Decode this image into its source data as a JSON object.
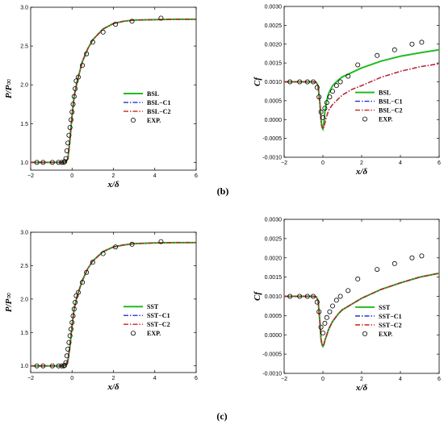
{
  "panel_labels": [
    "(b)",
    "(c)"
  ],
  "chart_data": [
    {
      "id": "tl",
      "type": "line",
      "xlabel": "x/δ",
      "ylabel": "P/P∞",
      "xlim": [
        -2,
        6
      ],
      "ylim": [
        0.9,
        3.0
      ],
      "xticks": [
        -2,
        0,
        2,
        4,
        6
      ],
      "yticks": [
        1.0,
        1.5,
        2.0,
        2.5,
        3.0
      ],
      "xticklabels": [
        "−2",
        "0",
        "2",
        "4",
        "6"
      ],
      "yticklabels": [
        "1.0",
        "1.5",
        "2.0",
        "2.5",
        "3.0"
      ],
      "legend_position": "right-center",
      "series": [
        {
          "name": "BSL",
          "color": "#22bb22",
          "style": "solid",
          "x": [
            -2,
            -0.6,
            -0.4,
            -0.3,
            -0.2,
            -0.1,
            0,
            0.1,
            0.25,
            0.5,
            0.75,
            1.0,
            1.5,
            2.0,
            2.5,
            3.0,
            4.0,
            5.0,
            6.0
          ],
          "y": [
            1.0,
            1.0,
            1.0,
            1.01,
            1.05,
            1.3,
            1.6,
            1.85,
            2.05,
            2.3,
            2.46,
            2.58,
            2.72,
            2.79,
            2.82,
            2.835,
            2.84,
            2.845,
            2.845
          ]
        },
        {
          "name": "BSL−C1",
          "color": "#2233cc",
          "style": "dashdot",
          "x": [
            -2,
            -0.6,
            -0.4,
            -0.3,
            -0.2,
            -0.1,
            0,
            0.1,
            0.25,
            0.5,
            0.75,
            1.0,
            1.5,
            2.0,
            2.5,
            3.0,
            4.0,
            5.0,
            6.0
          ],
          "y": [
            1.0,
            1.0,
            1.0,
            1.01,
            1.05,
            1.3,
            1.6,
            1.85,
            2.05,
            2.3,
            2.46,
            2.58,
            2.72,
            2.79,
            2.82,
            2.835,
            2.84,
            2.845,
            2.845
          ]
        },
        {
          "name": "BSL−C2",
          "color": "#cc2222",
          "style": "dashdot",
          "x": [
            -2,
            -0.6,
            -0.4,
            -0.3,
            -0.2,
            -0.1,
            0,
            0.1,
            0.25,
            0.5,
            0.75,
            1.0,
            1.5,
            2.0,
            2.5,
            3.0,
            4.0,
            5.0,
            6.0
          ],
          "y": [
            1.0,
            1.0,
            1.0,
            1.01,
            1.05,
            1.3,
            1.6,
            1.85,
            2.05,
            2.3,
            2.46,
            2.58,
            2.72,
            2.79,
            2.82,
            2.835,
            2.84,
            2.845,
            2.845
          ]
        },
        {
          "name": "EXP.",
          "style": "marker",
          "x": [
            -1.7,
            -1.4,
            -0.95,
            -0.65,
            -0.5,
            -0.4,
            -0.35,
            -0.3,
            -0.25,
            -0.2,
            -0.15,
            -0.1,
            -0.05,
            0.0,
            0.05,
            0.1,
            0.15,
            0.2,
            0.3,
            0.5,
            0.7,
            1.0,
            1.5,
            2.1,
            2.9,
            4.3
          ],
          "y": [
            1.0,
            1.0,
            1.0,
            1.0,
            1.0,
            1.0,
            1.01,
            1.05,
            1.15,
            1.25,
            1.35,
            1.45,
            1.55,
            1.65,
            1.75,
            1.85,
            1.95,
            2.05,
            2.1,
            2.25,
            2.4,
            2.55,
            2.68,
            2.78,
            2.82,
            2.86
          ]
        }
      ]
    },
    {
      "id": "tr",
      "type": "line",
      "xlabel": "x/δ",
      "ylabel": "Cf",
      "xlim": [
        -2,
        6
      ],
      "ylim": [
        -0.001,
        0.003
      ],
      "xticks": [
        -2,
        0,
        2,
        4,
        6
      ],
      "yticks": [
        -0.001,
        -0.0005,
        0,
        0.0005,
        0.001,
        0.0015,
        0.002,
        0.0025,
        0.003
      ],
      "xticklabels": [
        "−2",
        "0",
        "2",
        "4",
        "6"
      ],
      "yticklabels": [
        "-0.0010",
        "-0.0005",
        "0.0000",
        "0.0005",
        "0.0010",
        "0.0015",
        "0.0020",
        "0.0025",
        "0.0030"
      ],
      "legend_position": "bottom-right",
      "series": [
        {
          "name": "BSL",
          "color": "#22bb22",
          "style": "solid",
          "x": [
            -2,
            -0.5,
            -0.35,
            -0.25,
            -0.15,
            -0.1,
            -0.05,
            0,
            0.05,
            0.1,
            0.2,
            0.3,
            0.5,
            0.8,
            1.0,
            1.5,
            2,
            3,
            4,
            5,
            6
          ],
          "y": [
            0.001,
            0.001,
            0.00099,
            0.0009,
            0.0004,
            0.0,
            -0.0002,
            -0.00025,
            -0.0001,
            0.0002,
            0.0005,
            0.0007,
            0.0009,
            0.00105,
            0.00113,
            0.00125,
            0.00137,
            0.00155,
            0.00168,
            0.00177,
            0.00185
          ]
        },
        {
          "name": "BSL−C1",
          "color": "#2233cc",
          "style": "dashdot",
          "x": [
            -2,
            -0.5,
            -0.35,
            -0.25,
            -0.15,
            -0.1,
            -0.05,
            0,
            0.05,
            0.1,
            0.2,
            0.3,
            0.5,
            0.8,
            1.0,
            1.5,
            2,
            3,
            4,
            5,
            6
          ],
          "y": [
            0.001,
            0.001,
            0.00099,
            0.0009,
            0.0004,
            0.0,
            -0.0002,
            -0.00025,
            -0.0002,
            -0.0001,
            0.0001,
            0.00025,
            0.0004,
            0.00055,
            0.00065,
            0.0008,
            0.0009,
            0.00112,
            0.00128,
            0.0014,
            0.00148
          ]
        },
        {
          "name": "BSL−C2",
          "color": "#cc2222",
          "style": "dashdot",
          "x": [
            -2,
            -0.5,
            -0.35,
            -0.25,
            -0.15,
            -0.1,
            -0.05,
            0,
            0.05,
            0.1,
            0.2,
            0.3,
            0.5,
            0.8,
            1.0,
            1.5,
            2,
            3,
            4,
            5,
            6
          ],
          "y": [
            0.001,
            0.001,
            0.00099,
            0.0009,
            0.0004,
            0.0,
            -0.0002,
            -0.00025,
            -0.0002,
            -0.0001,
            0.0001,
            0.00025,
            0.0004,
            0.00055,
            0.00065,
            0.0008,
            0.0009,
            0.00112,
            0.00128,
            0.0014,
            0.00148
          ]
        },
        {
          "name": "EXP.",
          "style": "marker",
          "x": [
            -1.7,
            -1.2,
            -0.8,
            -0.5,
            -0.3,
            -0.2,
            -0.1,
            0.0,
            0.1,
            0.2,
            0.35,
            0.5,
            0.7,
            0.9,
            1.3,
            1.8,
            2.8,
            3.7,
            4.6,
            5.1
          ],
          "y": [
            0.001,
            0.001,
            0.001,
            0.001,
            0.00085,
            0.0006,
            0.0002,
            5e-05,
            0.0003,
            0.00045,
            0.0006,
            0.00075,
            0.0009,
            0.001,
            0.00115,
            0.00145,
            0.0017,
            0.00185,
            0.002,
            0.00205
          ]
        }
      ]
    },
    {
      "id": "bl",
      "type": "line",
      "xlabel": "x/δ",
      "ylabel": "P/P∞",
      "xlim": [
        -2,
        6
      ],
      "ylim": [
        0.9,
        3.0
      ],
      "xticks": [
        -2,
        0,
        2,
        4,
        6
      ],
      "yticks": [
        1.0,
        1.5,
        2.0,
        2.5,
        3.0
      ],
      "xticklabels": [
        "−2",
        "0",
        "2",
        "4",
        "6"
      ],
      "yticklabels": [
        "1.0",
        "1.5",
        "2.0",
        "2.5",
        "3.0"
      ],
      "legend_position": "right-center",
      "series": [
        {
          "name": "SST",
          "color": "#22bb22",
          "style": "solid",
          "x": [
            -2,
            -0.6,
            -0.4,
            -0.3,
            -0.2,
            -0.1,
            0,
            0.1,
            0.25,
            0.5,
            0.75,
            1.0,
            1.5,
            2.0,
            2.5,
            3.0,
            4.0,
            5.0,
            6.0
          ],
          "y": [
            1.0,
            1.0,
            1.0,
            1.02,
            1.08,
            1.3,
            1.6,
            1.85,
            2.05,
            2.28,
            2.45,
            2.57,
            2.71,
            2.78,
            2.81,
            2.83,
            2.84,
            2.845,
            2.845
          ]
        },
        {
          "name": "SST−C1",
          "color": "#2233cc",
          "style": "dashdot",
          "x": [
            -2,
            -0.6,
            -0.4,
            -0.3,
            -0.2,
            -0.1,
            0,
            0.1,
            0.25,
            0.5,
            0.75,
            1.0,
            1.5,
            2.0,
            2.5,
            3.0,
            4.0,
            5.0,
            6.0
          ],
          "y": [
            1.0,
            1.0,
            1.0,
            1.02,
            1.08,
            1.3,
            1.6,
            1.85,
            2.05,
            2.28,
            2.45,
            2.57,
            2.71,
            2.78,
            2.81,
            2.83,
            2.84,
            2.845,
            2.845
          ]
        },
        {
          "name": "SST−C2",
          "color": "#cc2222",
          "style": "dashdot",
          "x": [
            -2,
            -0.6,
            -0.4,
            -0.3,
            -0.2,
            -0.1,
            0,
            0.1,
            0.25,
            0.5,
            0.75,
            1.0,
            1.5,
            2.0,
            2.5,
            3.0,
            4.0,
            5.0,
            6.0
          ],
          "y": [
            1.0,
            1.0,
            1.0,
            1.02,
            1.08,
            1.3,
            1.6,
            1.85,
            2.05,
            2.28,
            2.45,
            2.57,
            2.71,
            2.78,
            2.81,
            2.83,
            2.84,
            2.845,
            2.845
          ]
        },
        {
          "name": "EXP.",
          "style": "marker",
          "x": [
            -1.7,
            -1.4,
            -0.95,
            -0.65,
            -0.5,
            -0.4,
            -0.35,
            -0.3,
            -0.25,
            -0.2,
            -0.15,
            -0.1,
            -0.05,
            0.0,
            0.05,
            0.1,
            0.15,
            0.2,
            0.3,
            0.5,
            0.7,
            1.0,
            1.5,
            2.1,
            2.9,
            4.3
          ],
          "y": [
            1.0,
            1.0,
            1.0,
            1.0,
            1.0,
            1.0,
            1.01,
            1.05,
            1.15,
            1.25,
            1.35,
            1.45,
            1.55,
            1.65,
            1.75,
            1.85,
            1.95,
            2.05,
            2.1,
            2.25,
            2.4,
            2.55,
            2.68,
            2.78,
            2.82,
            2.86
          ]
        }
      ]
    },
    {
      "id": "br",
      "type": "line",
      "xlabel": "x/δ",
      "ylabel": "Cf",
      "xlim": [
        -2,
        6
      ],
      "ylim": [
        -0.001,
        0.003
      ],
      "xticks": [
        -2,
        0,
        2,
        4,
        6
      ],
      "yticks": [
        -0.001,
        -0.0005,
        0,
        0.0005,
        0.001,
        0.0015,
        0.002,
        0.0025,
        0.003
      ],
      "xticklabels": [
        "−2",
        "0",
        "2",
        "4",
        "6"
      ],
      "yticklabels": [
        "-0.0010",
        "-0.0005",
        "0.0000",
        "0.0005",
        "0.0010",
        "0.0015",
        "0.0020",
        "0.0025",
        "0.0030"
      ],
      "legend_position": "bottom-right",
      "series": [
        {
          "name": "SST",
          "color": "#22bb22",
          "style": "solid",
          "x": [
            -2,
            -0.5,
            -0.35,
            -0.25,
            -0.15,
            -0.1,
            -0.05,
            0,
            0.05,
            0.1,
            0.2,
            0.3,
            0.5,
            0.8,
            1.0,
            1.5,
            2,
            3,
            4,
            5,
            6
          ],
          "y": [
            0.001,
            0.001,
            0.00099,
            0.0009,
            0.0003,
            -0.0001,
            -0.00025,
            -0.0003,
            -0.00025,
            -0.00015,
            0.0,
            0.00015,
            0.00035,
            0.00055,
            0.00065,
            0.0008,
            0.00095,
            0.00118,
            0.00135,
            0.0015,
            0.0016
          ]
        },
        {
          "name": "SST−C1",
          "color": "#2233cc",
          "style": "dashdot",
          "x": [
            -2,
            -0.5,
            -0.35,
            -0.25,
            -0.15,
            -0.1,
            -0.05,
            0,
            0.05,
            0.1,
            0.2,
            0.3,
            0.5,
            0.8,
            1.0,
            1.5,
            2,
            3,
            4,
            5,
            6
          ],
          "y": [
            0.001,
            0.001,
            0.00099,
            0.0009,
            0.0003,
            -0.0001,
            -0.00025,
            -0.0003,
            -0.00025,
            -0.00015,
            0.0,
            0.00015,
            0.00035,
            0.00055,
            0.00065,
            0.0008,
            0.00095,
            0.00118,
            0.00135,
            0.0015,
            0.0016
          ]
        },
        {
          "name": "SST−C2",
          "color": "#cc2222",
          "style": "dashdot",
          "x": [
            -2,
            -0.5,
            -0.35,
            -0.25,
            -0.15,
            -0.1,
            -0.05,
            0,
            0.05,
            0.1,
            0.2,
            0.3,
            0.5,
            0.8,
            1.0,
            1.5,
            2,
            3,
            4,
            5,
            6
          ],
          "y": [
            0.001,
            0.001,
            0.00099,
            0.0009,
            0.0003,
            -0.0001,
            -0.00025,
            -0.0003,
            -0.00025,
            -0.00015,
            0.0,
            0.00015,
            0.00035,
            0.00055,
            0.00065,
            0.0008,
            0.00095,
            0.00118,
            0.00135,
            0.0015,
            0.0016
          ]
        },
        {
          "name": "EXP.",
          "style": "marker",
          "x": [
            -1.7,
            -1.2,
            -0.8,
            -0.5,
            -0.3,
            -0.2,
            -0.1,
            0.0,
            0.1,
            0.2,
            0.35,
            0.5,
            0.7,
            0.9,
            1.3,
            1.8,
            2.8,
            3.7,
            4.6,
            5.1
          ],
          "y": [
            0.001,
            0.001,
            0.001,
            0.001,
            0.00085,
            0.0006,
            0.0002,
            5e-05,
            0.0003,
            0.00045,
            0.0006,
            0.00075,
            0.0009,
            0.001,
            0.00115,
            0.00145,
            0.0017,
            0.00185,
            0.002,
            0.00205
          ]
        }
      ]
    }
  ]
}
